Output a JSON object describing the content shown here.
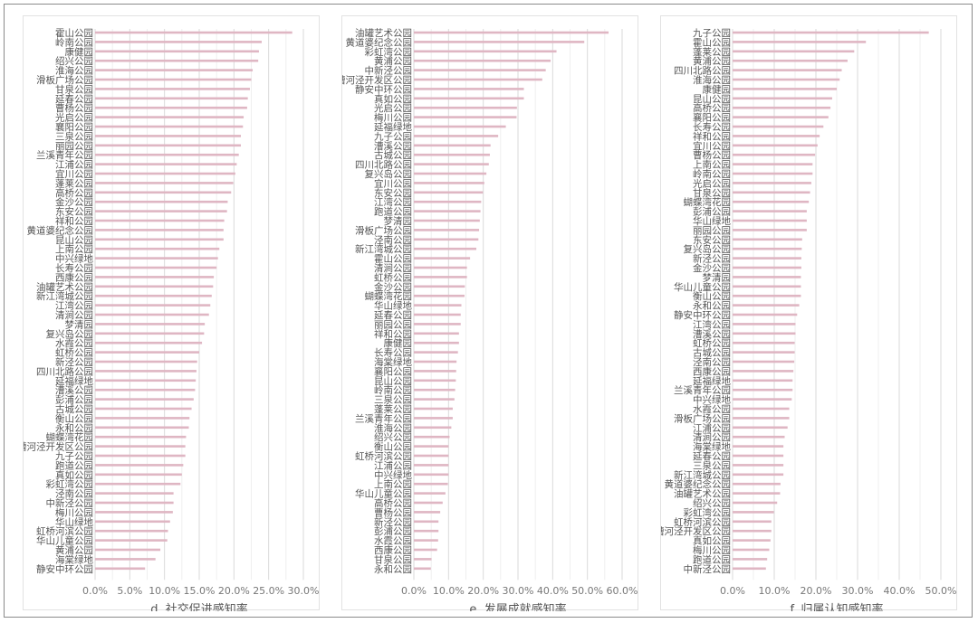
{
  "colors": {
    "bar": "#dfb6c3",
    "grid_major": "#dadada",
    "grid_minor": "#efefef",
    "text": "#555555"
  },
  "chart_data": [
    {
      "type": "bar",
      "orientation": "horizontal",
      "title": "d. 社交促进感知率",
      "xlim": [
        0,
        30
      ],
      "xticks": [
        "0.0%",
        "5.0%",
        "10.0%",
        "15.0%",
        "20.0%",
        "25.0%",
        "30.0%"
      ],
      "tick_step": 5,
      "categories": [
        "霍山公园",
        "岭南公园",
        "康健园",
        "绍兴公园",
        "淮海公园",
        "滑板广场公园",
        "甘泉公园",
        "延春公园",
        "曹杨公园",
        "光启公园",
        "襄阳公园",
        "三泉公园",
        "丽园公园",
        "兰溪青年公园",
        "江浦公园",
        "宜川公园",
        "蓬莱公园",
        "高桥公园",
        "金沙公园",
        "东安公园",
        "祥和公园",
        "黄道婆纪念公园",
        "昆山公园",
        "上南公园",
        "中兴绿地",
        "长寿公园",
        "西康公园",
        "油罐艺术公园",
        "新江湾城公园",
        "江湾公园",
        "清涧公园",
        "梦清园",
        "复兴岛公园",
        "水霞公园",
        "虹桥公园",
        "新泾公园",
        "四川北路公园",
        "延福绿地",
        "漕溪公园",
        "彭浦公园",
        "古城公园",
        "衡山公园",
        "永和公园",
        "蝴蝶湾花园",
        "漕河泾开发区公园",
        "九子公园",
        "跑道公园",
        "真如公园",
        "彩虹湾公园",
        "泾南公园",
        "中新泾公园",
        "梅川公园",
        "华山绿地",
        "虹桥河滨公园",
        "华山儿童公园",
        "黄浦公园",
        "海棠绿地",
        "静安中环公园"
      ],
      "values": [
        28.4,
        24.0,
        23.6,
        23.5,
        22.7,
        22.5,
        22.3,
        22.0,
        21.9,
        21.4,
        21.3,
        21.0,
        21.0,
        20.7,
        20.4,
        20.2,
        19.9,
        19.6,
        19.1,
        19.0,
        18.6,
        18.5,
        18.5,
        17.9,
        17.7,
        17.5,
        17.1,
        17.0,
        16.8,
        16.6,
        16.4,
        15.8,
        15.7,
        15.4,
        15.0,
        14.7,
        14.6,
        14.5,
        14.4,
        14.2,
        13.9,
        13.6,
        13.5,
        13.1,
        13.0,
        13.0,
        12.7,
        12.5,
        12.3,
        11.3,
        11.3,
        11.2,
        10.8,
        10.5,
        10.4,
        9.4,
        8.7,
        7.2
      ]
    },
    {
      "type": "bar",
      "orientation": "horizontal",
      "title": "e. 发展成就感知率",
      "xlim": [
        0,
        60
      ],
      "xticks": [
        "0.0%",
        "10.0%",
        "20.0%",
        "30.0%",
        "40.0%",
        "50.0%",
        "60.0%"
      ],
      "tick_step": 10,
      "categories": [
        "油罐艺术公园",
        "黄道婆纪念公园",
        "彩虹湾公园",
        "黄浦公园",
        "中新泾公园",
        "漕河泾开发区公园",
        "静安中环公园",
        "真如公园",
        "光启公园",
        "梅川公园",
        "延福绿地",
        "九子公园",
        "漕溪公园",
        "古城公园",
        "四川北路公园",
        "复兴岛公园",
        "宜川公园",
        "东安公园",
        "江湾公园",
        "跑道公园",
        "梦清园",
        "滑板广场公园",
        "泾南公园",
        "新江湾城公园",
        "霍山公园",
        "清涧公园",
        "虹桥公园",
        "金沙公园",
        "蝴蝶湾花园",
        "华山绿地",
        "延春公园",
        "丽园公园",
        "祥和公园",
        "康健园",
        "长寿公园",
        "海棠绿地",
        "襄阳公园",
        "昆山公园",
        "岭南公园",
        "三泉公园",
        "蓬莱公园",
        "兰溪青年公园",
        "淮海公园",
        "绍兴公园",
        "衡山公园",
        "虹桥河滨公园",
        "江浦公园",
        "中兴绿地",
        "上南公园",
        "华山儿童公园",
        "高桥公园",
        "曹杨公园",
        "新泾公园",
        "彭浦公园",
        "水霞公园",
        "西康公园",
        "甘泉公园",
        "永和公园"
      ],
      "values": [
        56.1,
        49.1,
        41.1,
        39.4,
        38.0,
        37.0,
        31.7,
        31.7,
        29.7,
        29.6,
        26.5,
        24.3,
        22.1,
        21.9,
        21.6,
        20.9,
        20.3,
        19.9,
        19.4,
        19.2,
        19.0,
        18.8,
        18.6,
        18.0,
        16.2,
        15.3,
        15.3,
        14.7,
        14.6,
        13.7,
        13.5,
        13.5,
        13.0,
        13.0,
        12.7,
        12.3,
        12.2,
        12.1,
        11.9,
        11.7,
        11.2,
        11.2,
        10.8,
        10.3,
        10.0,
        10.0,
        10.0,
        10.0,
        9.8,
        9.1,
        8.3,
        7.6,
        7.1,
        7.1,
        7.0,
        6.7,
        5.1,
        4.9
      ]
    },
    {
      "type": "bar",
      "orientation": "horizontal",
      "title": "f. 归属认知感知率",
      "xlim": [
        0,
        50
      ],
      "xticks": [
        "0.0%",
        "10.0%",
        "20.0%",
        "30.0%",
        "40.0%",
        "50.0%"
      ],
      "tick_step": 10,
      "categories": [
        "九子公园",
        "霍山公园",
        "蓬莱公园",
        "黄浦公园",
        "四川北路公园",
        "淮海公园",
        "康健园",
        "昆山公园",
        "高桥公园",
        "襄阳公园",
        "长寿公园",
        "祥和公园",
        "宜川公园",
        "曹杨公园",
        "上南公园",
        "岭南公园",
        "光启公园",
        "甘泉公园",
        "蝴蝶湾花园",
        "彭浦公园",
        "华山绿地",
        "丽园公园",
        "东安公园",
        "复兴岛公园",
        "新泾公园",
        "金沙公园",
        "梦清园",
        "华山儿童公园",
        "衡山公园",
        "永和公园",
        "静安中环公园",
        "江湾公园",
        "漕溪公园",
        "虹桥公园",
        "古城公园",
        "泾南公园",
        "西康公园",
        "延福绿地",
        "兰溪青年公园",
        "中兴绿地",
        "水霞公园",
        "滑板广场公园",
        "江浦公园",
        "清涧公园",
        "海棠绿地",
        "延春公园",
        "三泉公园",
        "新江湾城公园",
        "黄道婆纪念公园",
        "油罐艺术公园",
        "绍兴公园",
        "彩虹湾公园",
        "虹桥河滨公园",
        "漕河泾开发区公园",
        "真如公园",
        "梅川公园",
        "跑道公园",
        "中新泾公园"
      ],
      "values": [
        47.1,
        32.0,
        29.2,
        27.6,
        26.2,
        25.7,
        25.0,
        23.9,
        23.5,
        23.0,
        21.8,
        20.9,
        20.4,
        19.8,
        19.2,
        19.2,
        18.9,
        18.6,
        18.3,
        17.8,
        17.8,
        17.8,
        16.7,
        16.6,
        16.5,
        16.5,
        16.4,
        16.4,
        16.4,
        16.0,
        15.5,
        15.1,
        15.1,
        14.9,
        14.9,
        14.8,
        14.6,
        14.4,
        14.4,
        14.2,
        13.6,
        13.6,
        13.2,
        12.5,
        12.2,
        12.2,
        12.2,
        12.2,
        11.5,
        11.4,
        10.7,
        9.9,
        9.3,
        9.3,
        9.1,
        8.8,
        8.3,
        8.0
      ]
    }
  ]
}
